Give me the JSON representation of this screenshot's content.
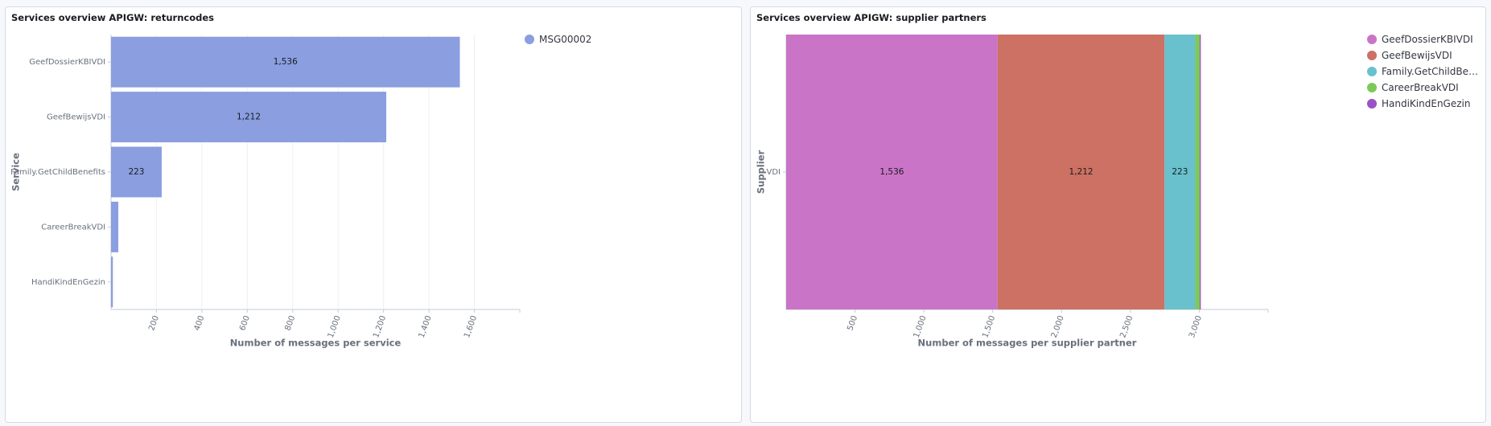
{
  "panels": [
    {
      "title": "Services overview APIGW: returncodes",
      "chart_data": {
        "type": "bar",
        "orientation": "horizontal",
        "categories": [
          "GeefDossierKBIVDI",
          "GeefBewijsVDI",
          "Family.GetChildBenefits",
          "CareerBreakVDI",
          "HandiKindEnGezin"
        ],
        "series": [
          {
            "name": "MSG00002",
            "color": "#8a9ee0",
            "values": [
              1536,
              1212,
              223,
              32,
              8
            ]
          }
        ],
        "data_labels": [
          "1,536",
          "1,212",
          "223",
          "",
          ""
        ],
        "xlabel": "Number of messages per service",
        "ylabel": "Service",
        "xlim": [
          0,
          1800
        ],
        "xticks": [
          200,
          400,
          600,
          800,
          1000,
          1200,
          1400,
          1600
        ],
        "xtick_labels": [
          "200",
          "400",
          "600",
          "800",
          "1,000",
          "1,200",
          "1,400",
          "1,600"
        ],
        "grid": true,
        "legend_position": "top-right"
      }
    },
    {
      "title": "Services overview APIGW: supplier partners",
      "chart_data": {
        "type": "bar",
        "orientation": "horizontal",
        "stacked": true,
        "categories": [
          "VDI"
        ],
        "series": [
          {
            "name": "GeefDossierKBIVDI",
            "legend_label": "GeefDossierKBIVDI",
            "color": "#ca74c8",
            "values": [
              1536
            ]
          },
          {
            "name": "GeefBewijsVDI",
            "legend_label": "GeefBewijsVDI",
            "color": "#cc7163",
            "values": [
              1212
            ]
          },
          {
            "name": "Family.GetChildBenefits",
            "legend_label": "Family.GetChildBen...",
            "color": "#68c1cc",
            "values": [
              223
            ]
          },
          {
            "name": "CareerBreakVDI",
            "legend_label": "CareerBreakVDI",
            "color": "#7dc95a",
            "values": [
              32
            ]
          },
          {
            "name": "HandiKindEnGezin",
            "legend_label": "HandiKindEnGezin",
            "color": "#9a52c6",
            "values": [
              8
            ]
          }
        ],
        "data_labels": [
          "1,536",
          "1,212",
          "223",
          "",
          ""
        ],
        "xlabel": "Number of messages per supplier partner",
        "ylabel": "Supplier",
        "xlim": [
          0,
          3500
        ],
        "xticks": [
          500,
          1000,
          1500,
          2000,
          2500,
          3000
        ],
        "xtick_labels": [
          "500",
          "1,000",
          "1,500",
          "2,000",
          "2,500",
          "3,000"
        ],
        "grid": true,
        "legend_position": "top-right"
      }
    }
  ]
}
